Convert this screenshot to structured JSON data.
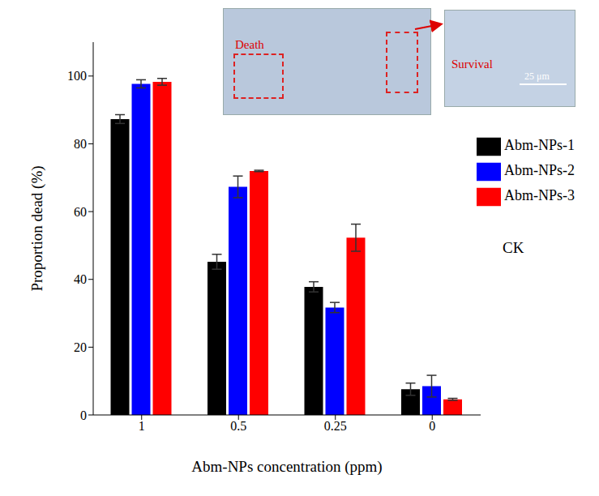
{
  "chart_data": {
    "type": "bar",
    "x_label": "Abm-NPs concentration (ppm)",
    "y_label": "Proportion dead (%)",
    "categories": [
      "1",
      "0.5",
      "0.25",
      "0"
    ],
    "series": [
      {
        "name": "Abm-NPs-1",
        "color": "#000000",
        "values": [
          87.3,
          45.2,
          37.8,
          7.6
        ],
        "errors": [
          1.3,
          2.2,
          1.5,
          1.8
        ]
      },
      {
        "name": "Abm-NPs-2",
        "color": "#0000ff",
        "values": [
          97.7,
          67.3,
          31.7,
          8.5
        ],
        "errors": [
          1.2,
          3.2,
          1.5,
          3.2
        ]
      },
      {
        "name": "Abm-NPs-3",
        "color": "#ff0000",
        "values": [
          98.3,
          72.0,
          52.3,
          4.6
        ],
        "errors": [
          1.0,
          0.2,
          4.0,
          0.3
        ]
      }
    ],
    "ylim": [
      0,
      110
    ],
    "yticks": [
      0,
      20,
      40,
      60,
      80,
      100
    ],
    "legend": "upper right",
    "annotations": [
      "CK",
      "Death",
      "Survival",
      "25 μm"
    ]
  }
}
